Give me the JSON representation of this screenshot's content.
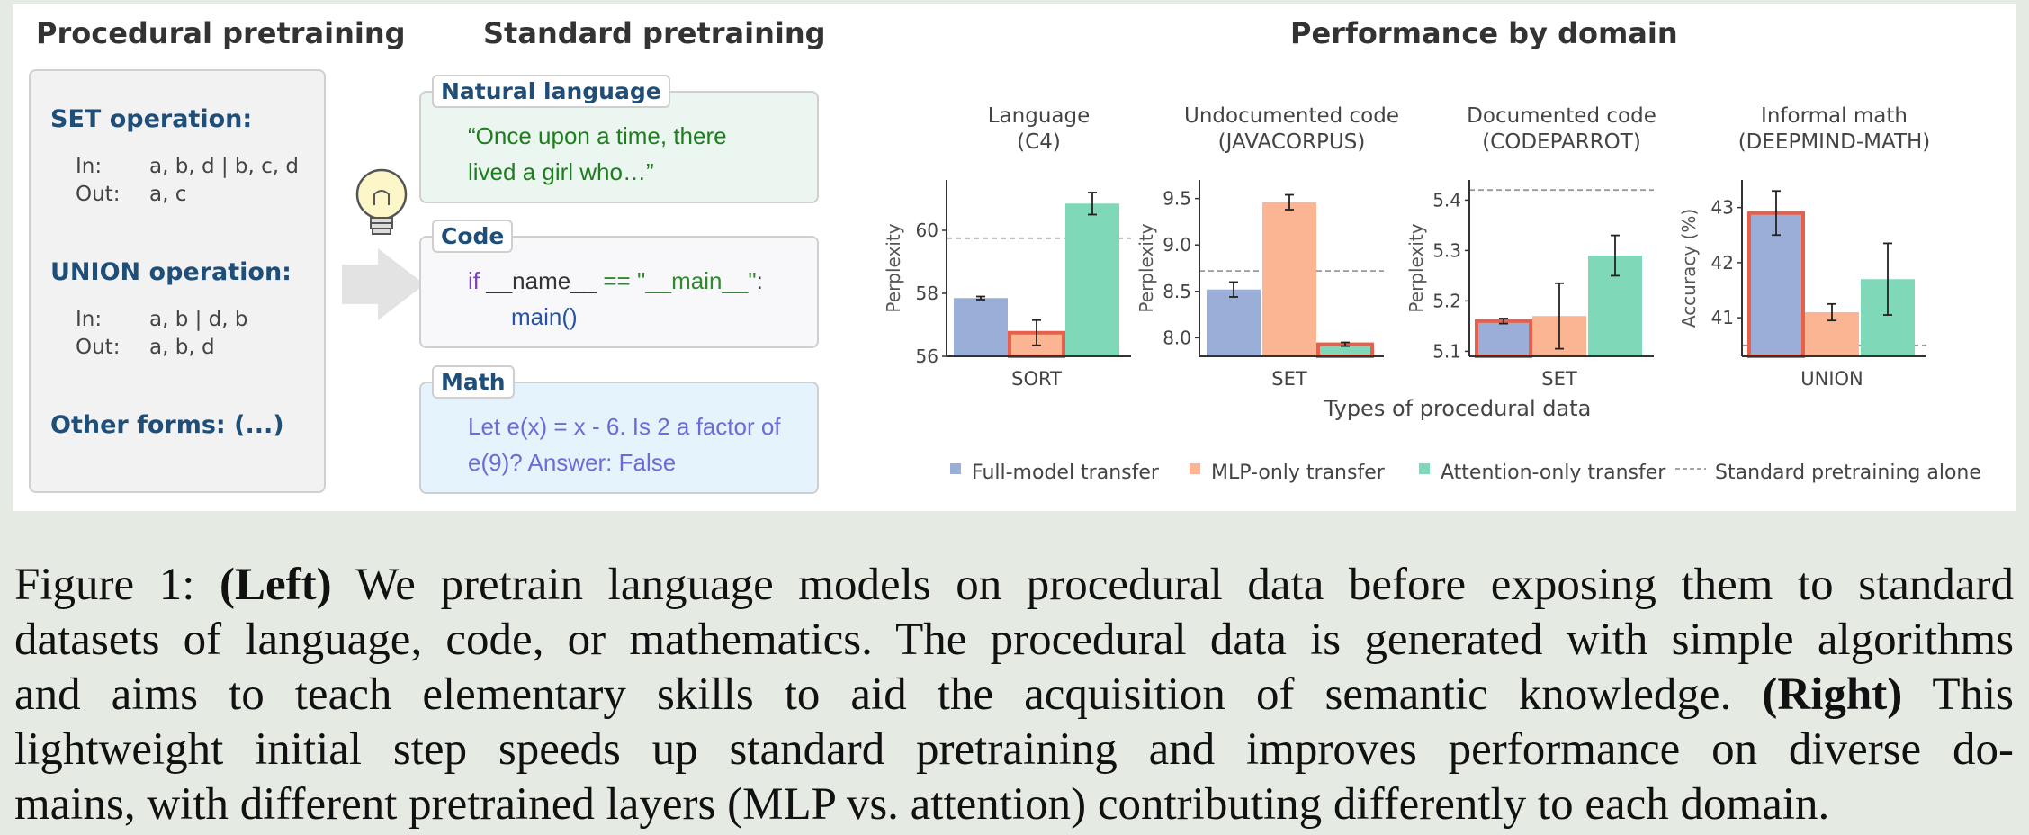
{
  "panel": {
    "headers": {
      "procedural": "Procedural pretraining",
      "standard": "Standard pretraining",
      "performance": "Performance by domain"
    }
  },
  "procedural": {
    "set_title": "SET operation:",
    "set_in_label": "In:",
    "set_in_value": "a, b, d | b, c, d",
    "set_out_label": "Out:",
    "set_out_value": "a, c",
    "union_title": "UNION operation:",
    "union_in_label": "In:",
    "union_in_value": "a, b | d, b",
    "union_out_label": "Out:",
    "union_out_value": "a, b, d",
    "other_forms": "Other forms: (...)"
  },
  "standard": {
    "natural_language": {
      "tag": "Natural language",
      "line1": "“Once upon a time, there",
      "line2": "lived a girl who…”"
    },
    "code": {
      "tag": "Code",
      "kw_if": "if",
      "name_var": "__name__",
      "op_eq": "==",
      "main_str": "\"__main__\"",
      "colon": ":",
      "call": "main()"
    },
    "math": {
      "tag": "Math",
      "line1": "Let e(x) = x - 6. Is 2 a factor of",
      "line2": "e(9)? Answer: False"
    }
  },
  "colors": {
    "full_model": "#9aaed8",
    "mlp_only": "#fcb592",
    "attention_only": "#7fd9b9",
    "highlight_border": "#e8604c",
    "baseline": "#999999",
    "nl_text": "#1e7d1e",
    "math_text": "#6c6cd8",
    "code_kw": "#7b3fb6",
    "code_str": "#2f8a2f",
    "code_call": "#2553a5"
  },
  "chart_data": [
    {
      "type": "bar",
      "title": "Language\n(C4)",
      "ylabel": "Perplexity",
      "category": "SORT",
      "series": [
        {
          "name": "Full-model transfer",
          "value": 57.85,
          "err": 0.05,
          "highlight": false
        },
        {
          "name": "MLP-only transfer",
          "value": 56.75,
          "err": 0.4,
          "highlight": true
        },
        {
          "name": "Attention-only transfer",
          "value": 60.85,
          "err": 0.35,
          "highlight": false
        }
      ],
      "baseline": 59.75,
      "ylim": [
        56,
        61.6
      ],
      "yticks": [
        56,
        58,
        60
      ]
    },
    {
      "type": "bar",
      "title": "Undocumented code\n(JAVACORPUS)",
      "ylabel": "Perplexity",
      "category": "SET",
      "series": [
        {
          "name": "Full-model transfer",
          "value": 8.52,
          "err": 0.08,
          "highlight": false
        },
        {
          "name": "MLP-only transfer",
          "value": 9.46,
          "err": 0.08,
          "highlight": false
        },
        {
          "name": "Attention-only transfer",
          "value": 7.93,
          "err": 0.02,
          "highlight": true
        }
      ],
      "baseline": 8.72,
      "ylim": [
        7.8,
        9.7
      ],
      "yticks": [
        8.0,
        8.5,
        9.0,
        9.5
      ]
    },
    {
      "type": "bar",
      "title": "Documented code\n(CODEPARROT)",
      "ylabel": "Perplexity",
      "category": "SET",
      "series": [
        {
          "name": "Full-model transfer",
          "value": 5.16,
          "err": 0.005,
          "highlight": true
        },
        {
          "name": "MLP-only transfer",
          "value": 5.17,
          "err": 0.065,
          "highlight": false
        },
        {
          "name": "Attention-only transfer",
          "value": 5.29,
          "err": 0.04,
          "highlight": false
        }
      ],
      "baseline": 5.42,
      "ylim": [
        5.09,
        5.44
      ],
      "yticks": [
        5.1,
        5.2,
        5.3,
        5.4
      ]
    },
    {
      "type": "bar",
      "title": "Informal math\n(DEEPMIND-MATH)",
      "ylabel": "Accuracy (%)",
      "category": "UNION",
      "series": [
        {
          "name": "Full-model transfer",
          "value": 42.9,
          "err": 0.4,
          "highlight": true
        },
        {
          "name": "MLP-only transfer",
          "value": 41.1,
          "err": 0.15,
          "highlight": false
        },
        {
          "name": "Attention-only transfer",
          "value": 41.7,
          "err": 0.65,
          "highlight": false
        }
      ],
      "baseline": 40.5,
      "ylim": [
        40.3,
        43.5
      ],
      "yticks": [
        41,
        42,
        43
      ]
    }
  ],
  "charts_common": {
    "xlabel": "Types of procedural data",
    "legend": {
      "placement": "bottom",
      "full": "Full-model transfer",
      "mlp": "MLP-only transfer",
      "attn": "Attention-only transfer",
      "baseline": "Standard pretraining alone"
    }
  },
  "caption": {
    "fig_label": "Figure 1:",
    "left_tag": "(Left)",
    "line1_rest": " We pretrain language models on procedural data before exposing them to standard",
    "line2": "datasets of language, code, or mathematics. The procedural data is generated with simple algorithms",
    "line3_a": "and aims to teach elementary skills to aid the acquisition of semantic knowledge.",
    "right_tag": "(Right)",
    "line3_b": "This",
    "line4": "lightweight initial step speeds up standard pretraining and improves performance on diverse do-",
    "line5": "mains, with different pretrained layers (MLP vs. attention) contributing differently to each domain."
  }
}
